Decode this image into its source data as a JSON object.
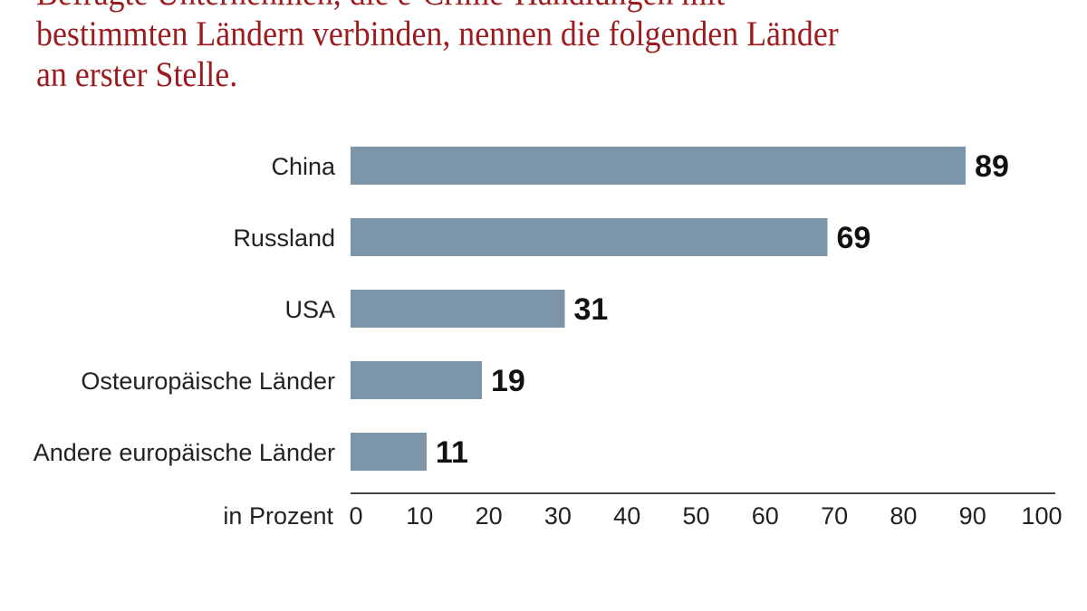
{
  "chart_data": {
    "type": "bar",
    "orientation": "horizontal",
    "title": [
      "Befragte Unternehmen, die e-Crime-Handlungen mit",
      "bestimmten Ländern verbinden, nennen die folgenden Länder",
      "an erster Stelle."
    ],
    "categories": [
      "China",
      "Russland",
      "USA",
      "Osteuropäische Länder",
      "Andere europäische Länder"
    ],
    "values": [
      89,
      69,
      31,
      19,
      11
    ],
    "xlabel": "in Prozent",
    "xlim": [
      0,
      100
    ],
    "xticks": [
      0,
      10,
      20,
      30,
      40,
      50,
      60,
      70,
      80,
      90,
      100
    ],
    "grid": false,
    "bar_color": "#7d95a8",
    "title_color": "#9b1b1e"
  }
}
